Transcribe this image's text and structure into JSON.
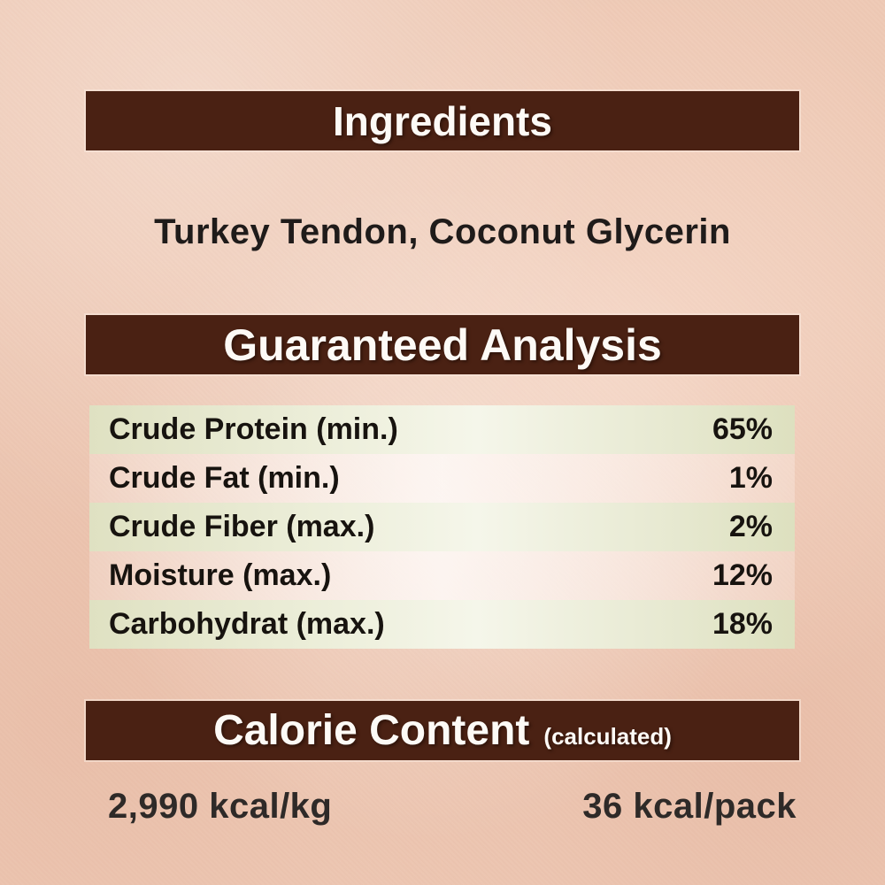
{
  "colors": {
    "background": "#eec9b5",
    "bar": "#4a2113",
    "bar_text": "#fdfaf6",
    "row_green": "#e7e9d1",
    "body_text": "#1f1b1a"
  },
  "ingredients": {
    "title": "Ingredients",
    "list": "Turkey Tendon, Coconut Glycerin"
  },
  "guaranteed_analysis": {
    "title": "Guaranteed Analysis",
    "rows": [
      {
        "label": "Crude Protein (min.)",
        "value": "65%"
      },
      {
        "label": "Crude Fat (min.)",
        "value": "1%"
      },
      {
        "label": "Crude Fiber (max.)",
        "value": "2%"
      },
      {
        "label": "Moisture (max.)",
        "value": "12%"
      },
      {
        "label": "Carbohydrat (max.)",
        "value": "18%"
      }
    ]
  },
  "calorie_content": {
    "title": "Calorie Content",
    "subtitle": "(calculated)",
    "per_kg": "2,990 kcal/kg",
    "per_pack": "36 kcal/pack"
  }
}
